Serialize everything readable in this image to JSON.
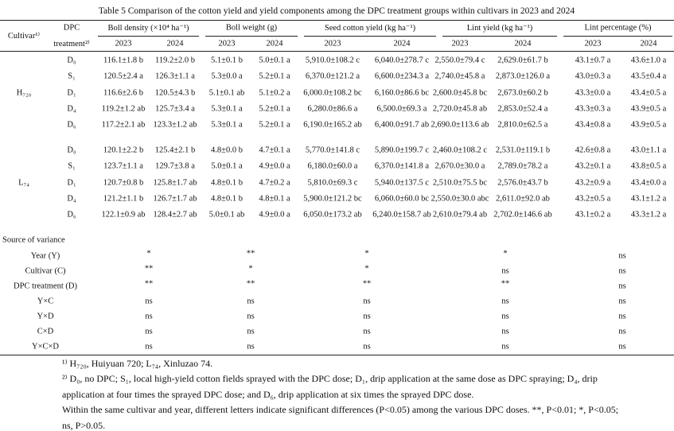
{
  "header": {
    "title": "Table 5 Comparison of the cotton yield and yield components among the DPC treatment groups within cultivars in 2023 and 2024",
    "cultivar": "Cultivar¹⁾",
    "dpc": [
      "DPC",
      "treatment²⁾"
    ],
    "groups": [
      {
        "name": "Boll density (×10⁴ ha⁻¹)",
        "years": [
          "2023",
          "2024"
        ]
      },
      {
        "name": "Boll weight (g)",
        "years": [
          "2023",
          "2024"
        ]
      },
      {
        "name": "Seed cotton yield (kg ha⁻¹)",
        "years": [
          "2023",
          "2024"
        ]
      },
      {
        "name": "Lint yield (kg ha⁻¹)",
        "years": [
          "2023",
          "2024"
        ]
      },
      {
        "name": "Lint percentage (%)",
        "years": [
          "2023",
          "2024"
        ]
      }
    ]
  },
  "cultivars": [
    {
      "name": "H₇₂₀",
      "rows": [
        {
          "treatment": "D₀",
          "values": [
            "116.1±1.8 b",
            "119.2±2.0 b",
            "5.1±0.1 b",
            "5.0±0.1 a",
            "5,910.0±108.2 c",
            "6,040.0±278.7 c",
            "2,550.0±79.4 c",
            "2,629.0±61.7 b",
            "43.1±0.7 a",
            "43.6±1.0 a"
          ]
        },
        {
          "treatment": "S₁",
          "values": [
            "120.5±2.4 a",
            "126.3±1.1 a",
            "5.3±0.0 a",
            "5.2±0.1 a",
            "6,370.0±121.2 a",
            "6,600.0±234.3 a",
            "2,740.0±45.8 a",
            "2,873.0±126.0 a",
            "43.0±0.3 a",
            "43.5±0.4 a"
          ]
        },
        {
          "treatment": "D₁",
          "values": [
            "116.6±2.6 b",
            "120.5±4.3 b",
            "5.1±0.1 ab",
            "5.1±0.2 a",
            "6,000.0±108.2 bc",
            "6,160.0±86.6 bc",
            "2,600.0±45.8 bc",
            "2,673.0±60.2 b",
            "43.3±0.0 a",
            "43.4±0.5 a"
          ]
        },
        {
          "treatment": "D₄",
          "values": [
            "119.2±1.2 ab",
            "125.7±3.4 a",
            "5.3±0.1 a",
            "5.2±0.1 a",
            "6,280.0±86.6 a",
            "6,500.0±69.3 a",
            "2,720.0±45.8 ab",
            "2,853.0±52.4 a",
            "43.3±0.3 a",
            "43.9±0.5 a"
          ]
        },
        {
          "treatment": "D₆",
          "values": [
            "117.2±2.1 ab",
            "123.3±1.2 ab",
            "5.3±0.1 a",
            "5.2±0.1 a",
            "6,190.0±165.2 ab",
            "6,400.0±91.7 ab",
            "2,690.0±113.6 ab",
            "2,810.0±62.5 a",
            "43.4±0.8 a",
            "43.9±0.5 a"
          ]
        }
      ]
    },
    {
      "name": "L₇₄",
      "rows": [
        {
          "treatment": "D₀",
          "values": [
            "120.1±2.2 b",
            "125.4±2.1 b",
            "4.8±0.0 b",
            "4.7±0.1 a",
            "5,770.0±141.8 c",
            "5,890.0±199.7 c",
            "2,460.0±108.2 c",
            "2,531.0±119.1 b",
            "42.6±0.8 a",
            "43.0±1.1 a"
          ]
        },
        {
          "treatment": "S₁",
          "values": [
            "123.7±1.1 a",
            "129.7±3.8 a",
            "5.0±0.1 a",
            "4.9±0.0 a",
            "6,180.0±60.0 a",
            "6,370.0±141.8 a",
            "2,670.0±30.0 a",
            "2,789.0±78.2 a",
            "43.2±0.1 a",
            "43.8±0.5 a"
          ]
        },
        {
          "treatment": "D₁",
          "values": [
            "120.7±0.8 b",
            "125.8±1.7 ab",
            "4.8±0.1 b",
            "4.7±0.2 a",
            "5,810.0±69.3 c",
            "5,940.0±137.5 c",
            "2,510.0±75.5 bc",
            "2,576.0±43.7 b",
            "43.2±0.9 a",
            "43.4±0.0 a"
          ]
        },
        {
          "treatment": "D₄",
          "values": [
            "121.2±1.1 b",
            "126.7±1.7 ab",
            "4.8±0.1 b",
            "4.8±0.1 a",
            "5,900.0±121.2 bc",
            "6,060.0±60.0 bc",
            "2,550.0±30.0 abc",
            "2,611.0±92.0 ab",
            "43.2±0.5 a",
            "43.1±1.2 a"
          ]
        },
        {
          "treatment": "D₆",
          "values": [
            "122.1±0.9 ab",
            "128.4±2.7 ab",
            "5.0±0.1 ab",
            "4.9±0.0 a",
            "6,050.0±173.2 ab",
            "6,240.0±158.7 ab",
            "2,610.0±79.4 ab",
            "2,702.0±146.6 ab",
            "43.1±0.2 a",
            "43.3±1.2 a"
          ]
        }
      ]
    }
  ],
  "variance": {
    "title": "Source of variance",
    "rows": [
      {
        "source": "Year (Y)",
        "values": [
          "*",
          "**",
          "*",
          "*",
          "ns"
        ]
      },
      {
        "source": "Cultivar (C)",
        "values": [
          "**",
          "*",
          "*",
          "ns",
          "ns"
        ]
      },
      {
        "source": "DPC treatment (D)",
        "values": [
          "**",
          "**",
          "**",
          "**",
          "ns"
        ]
      },
      {
        "source": "Y×C",
        "values": [
          "ns",
          "ns",
          "ns",
          "ns",
          "ns"
        ]
      },
      {
        "source": "Y×D",
        "values": [
          "ns",
          "ns",
          "ns",
          "ns",
          "ns"
        ]
      },
      {
        "source": "C×D",
        "values": [
          "ns",
          "ns",
          "ns",
          "ns",
          "ns"
        ]
      },
      {
        "source": "Y×C×D",
        "values": [
          "ns",
          "ns",
          "ns",
          "ns",
          "ns"
        ]
      }
    ]
  },
  "footnotes": [
    "¹⁾ H₇₂₀, Huiyuan 720; L₇₄, Xinluzao 74.",
    "²⁾ D₀, no DPC; S₁, local high-yield cotton fields sprayed with the DPC dose; D₁, drip application at the same dose as DPC spraying; D₄, drip application at four times the sprayed DPC dose; and D₆, drip application at six times the sprayed DPC dose.",
    "Within the same cultivar and year, different letters indicate significant differences (P<0.05) among the various DPC doses. **, P<0.01; *, P<0.05; ns, P>0.05."
  ]
}
